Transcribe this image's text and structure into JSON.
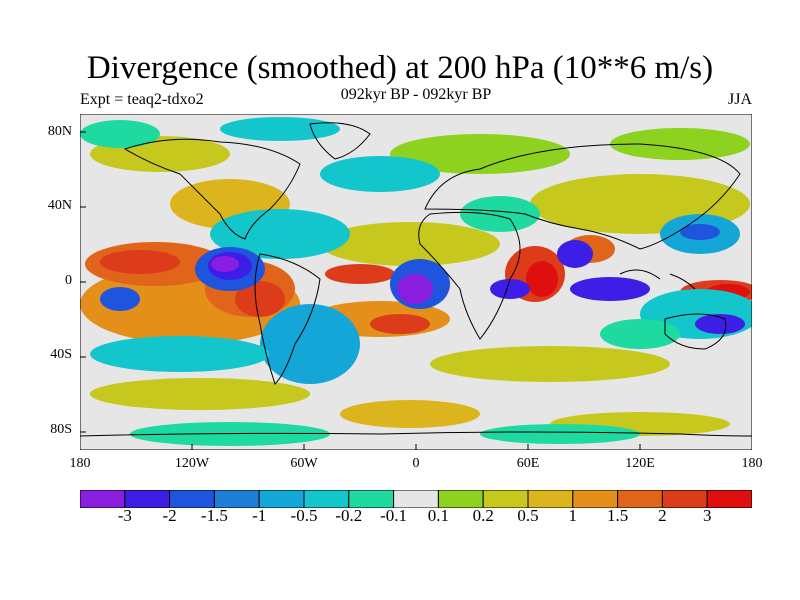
{
  "header": {
    "title": "Divergence (smoothed) at 200 hPa (10**6 m/s)",
    "expt": "Expt = teaq2-tdxo2",
    "subtitle": "092kyr BP - 092kyr BP",
    "season": "JJA"
  },
  "map": {
    "lat_labels": [
      "80N",
      "40N",
      "0",
      "40S",
      "80S"
    ],
    "lon_labels": [
      "180",
      "120W",
      "60W",
      "0",
      "60E",
      "120E",
      "180"
    ],
    "lon_range": [
      -180,
      180
    ],
    "lat_range": [
      -90,
      90
    ]
  },
  "colorbar": {
    "colors": [
      "#8a1ee0",
      "#3c1ee6",
      "#1f55dc",
      "#1e7fd8",
      "#13a6d6",
      "#12c6cc",
      "#1ed9a0",
      "#e6e6e6",
      "#8cd21e",
      "#c7c81e",
      "#dcb41e",
      "#e38f1a",
      "#e0641a",
      "#dc3c1a",
      "#e00f0f"
    ],
    "labels": [
      "-3",
      "-2",
      "-1.5",
      "-1",
      "-0.5",
      "-0.2",
      "-0.1",
      "0.1",
      "0.2",
      "0.5",
      "1",
      "1.5",
      "2",
      "3"
    ]
  }
}
